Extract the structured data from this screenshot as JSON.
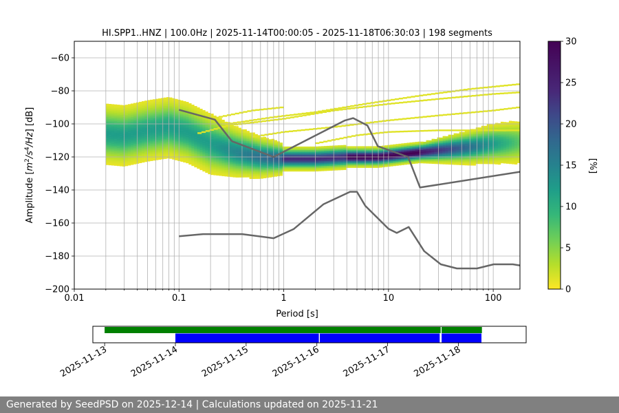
{
  "chart_data": [
    {
      "type": "heatmap",
      "title": "HI.SPP1..HNZ | 100.0Hz | 2025-11-14T00:00:05 - 2025-11-18T06:30:03 | 198 segments",
      "xlabel": "Period [s]",
      "ylabel_parts": {
        "prefix": "Amplitude [",
        "m": "m",
        "e1": "2",
        "s": "/s",
        "e2": "4",
        "hz": "/Hz",
        "suffix": "] [dB]"
      },
      "x_scale": "log",
      "xlim": [
        0.01,
        180
      ],
      "ylim": [
        -200,
        -50
      ],
      "grid": true,
      "x_ticks": [
        0.01,
        0.1,
        1,
        10,
        100
      ],
      "x_tick_labels": [
        "0.01",
        "0.1",
        "1",
        "10",
        "100"
      ],
      "y_ticks": [
        -200,
        -180,
        -160,
        -140,
        -120,
        -100,
        -80,
        -60
      ],
      "y_tick_labels": [
        "−200",
        "−180",
        "−160",
        "−140",
        "−120",
        "−100",
        "−80",
        "−60"
      ],
      "colorbar": {
        "label": "[%]",
        "colormap": "viridis_r",
        "range": [
          0,
          30
        ],
        "ticks": [
          0,
          5,
          10,
          15,
          20,
          25,
          30
        ],
        "tick_labels": [
          "0",
          "5",
          "10",
          "15",
          "20",
          "25",
          "30"
        ]
      },
      "density_ridges": [
        {
          "name": "main",
          "periods": [
            0.02,
            0.03,
            0.05,
            0.08,
            0.12,
            0.2,
            0.35,
            0.6,
            1.0,
            2.0,
            4.0,
            8.0,
            15,
            30,
            60,
            100,
            180
          ],
          "db": [
            -106,
            -107,
            -104,
            -102,
            -105,
            -112,
            -117,
            -120,
            -121,
            -121,
            -120,
            -120,
            -118,
            -116,
            -114,
            -112,
            -111
          ]
        }
      ],
      "outlier_tracks": [
        {
          "periods": [
            0.15,
            0.3,
            1.0,
            3.0,
            10,
            30,
            100,
            180
          ],
          "db": [
            -106,
            -101,
            -97,
            -92,
            -88,
            -85,
            -82,
            -81
          ]
        },
        {
          "periods": [
            0.3,
            0.8,
            2.0,
            6.0,
            20,
            60,
            180
          ],
          "db": [
            -100,
            -96,
            -93,
            -88,
            -83,
            -79,
            -76
          ]
        },
        {
          "periods": [
            0.5,
            1.0,
            3.0,
            10,
            30,
            100,
            180
          ],
          "db": [
            -108,
            -105,
            -102,
            -98,
            -95,
            -92,
            -90
          ]
        },
        {
          "periods": [
            2.0,
            5.0,
            10,
            30,
            100,
            180
          ],
          "db": [
            -112,
            -107,
            -105,
            -104,
            -104,
            -104
          ]
        },
        {
          "periods": [
            0.2,
            0.5,
            1.0
          ],
          "db": [
            -97,
            -92,
            -90
          ]
        }
      ],
      "noise_models": [
        {
          "name": "high",
          "periods": [
            0.1,
            0.22,
            0.32,
            0.8,
            3.8,
            4.6,
            6.3,
            7.9,
            15.4,
            20,
            180
          ],
          "db": [
            -91.5,
            -97.4,
            -110.5,
            -120,
            -98,
            -96.5,
            -101,
            -113.5,
            -120,
            -138.5,
            -129
          ]
        },
        {
          "name": "low",
          "periods": [
            0.1,
            0.17,
            0.4,
            0.8,
            1.24,
            2.4,
            4.3,
            5.0,
            6.0,
            10.0,
            12.0,
            15.6,
            21.9,
            31.6,
            45,
            70,
            101,
            154,
            180
          ],
          "db": [
            -168,
            -166.7,
            -166.7,
            -169.2,
            -163.7,
            -148.6,
            -141.1,
            -141.1,
            -149.6,
            -163.5,
            -166,
            -162.4,
            -177,
            -185,
            -187.5,
            -187.5,
            -185,
            -185,
            -185.7
          ]
        }
      ]
    },
    {
      "type": "timeline",
      "x_type": "date",
      "xlim": [
        "2025-11-12T20:00",
        "2025-11-18T23:00"
      ],
      "x_ticks": [
        "2025-11-13",
        "2025-11-14",
        "2025-11-15",
        "2025-11-16",
        "2025-11-17",
        "2025-11-18"
      ],
      "x_tick_labels": [
        "2025-11-13",
        "2025-11-14",
        "2025-11-15",
        "2025-11-16",
        "2025-11-17",
        "2025-11-18"
      ],
      "series": [
        {
          "color": "#008000",
          "intervals": [
            [
              "2025-11-13T00:00",
              "2025-11-17T18:00"
            ],
            [
              "2025-11-17T18:20",
              "2025-11-18T08:00"
            ]
          ]
        },
        {
          "color": "#0000ff",
          "intervals": [
            [
              "2025-11-14T00:00",
              "2025-11-16T00:40"
            ],
            [
              "2025-11-16T01:00",
              "2025-11-17T17:40"
            ],
            [
              "2025-11-17T18:20",
              "2025-11-18T07:50"
            ]
          ]
        }
      ]
    }
  ],
  "footer": {
    "text": "Generated by SeedPSD on 2025-12-14 | Calculations updated on 2025-11-21"
  }
}
